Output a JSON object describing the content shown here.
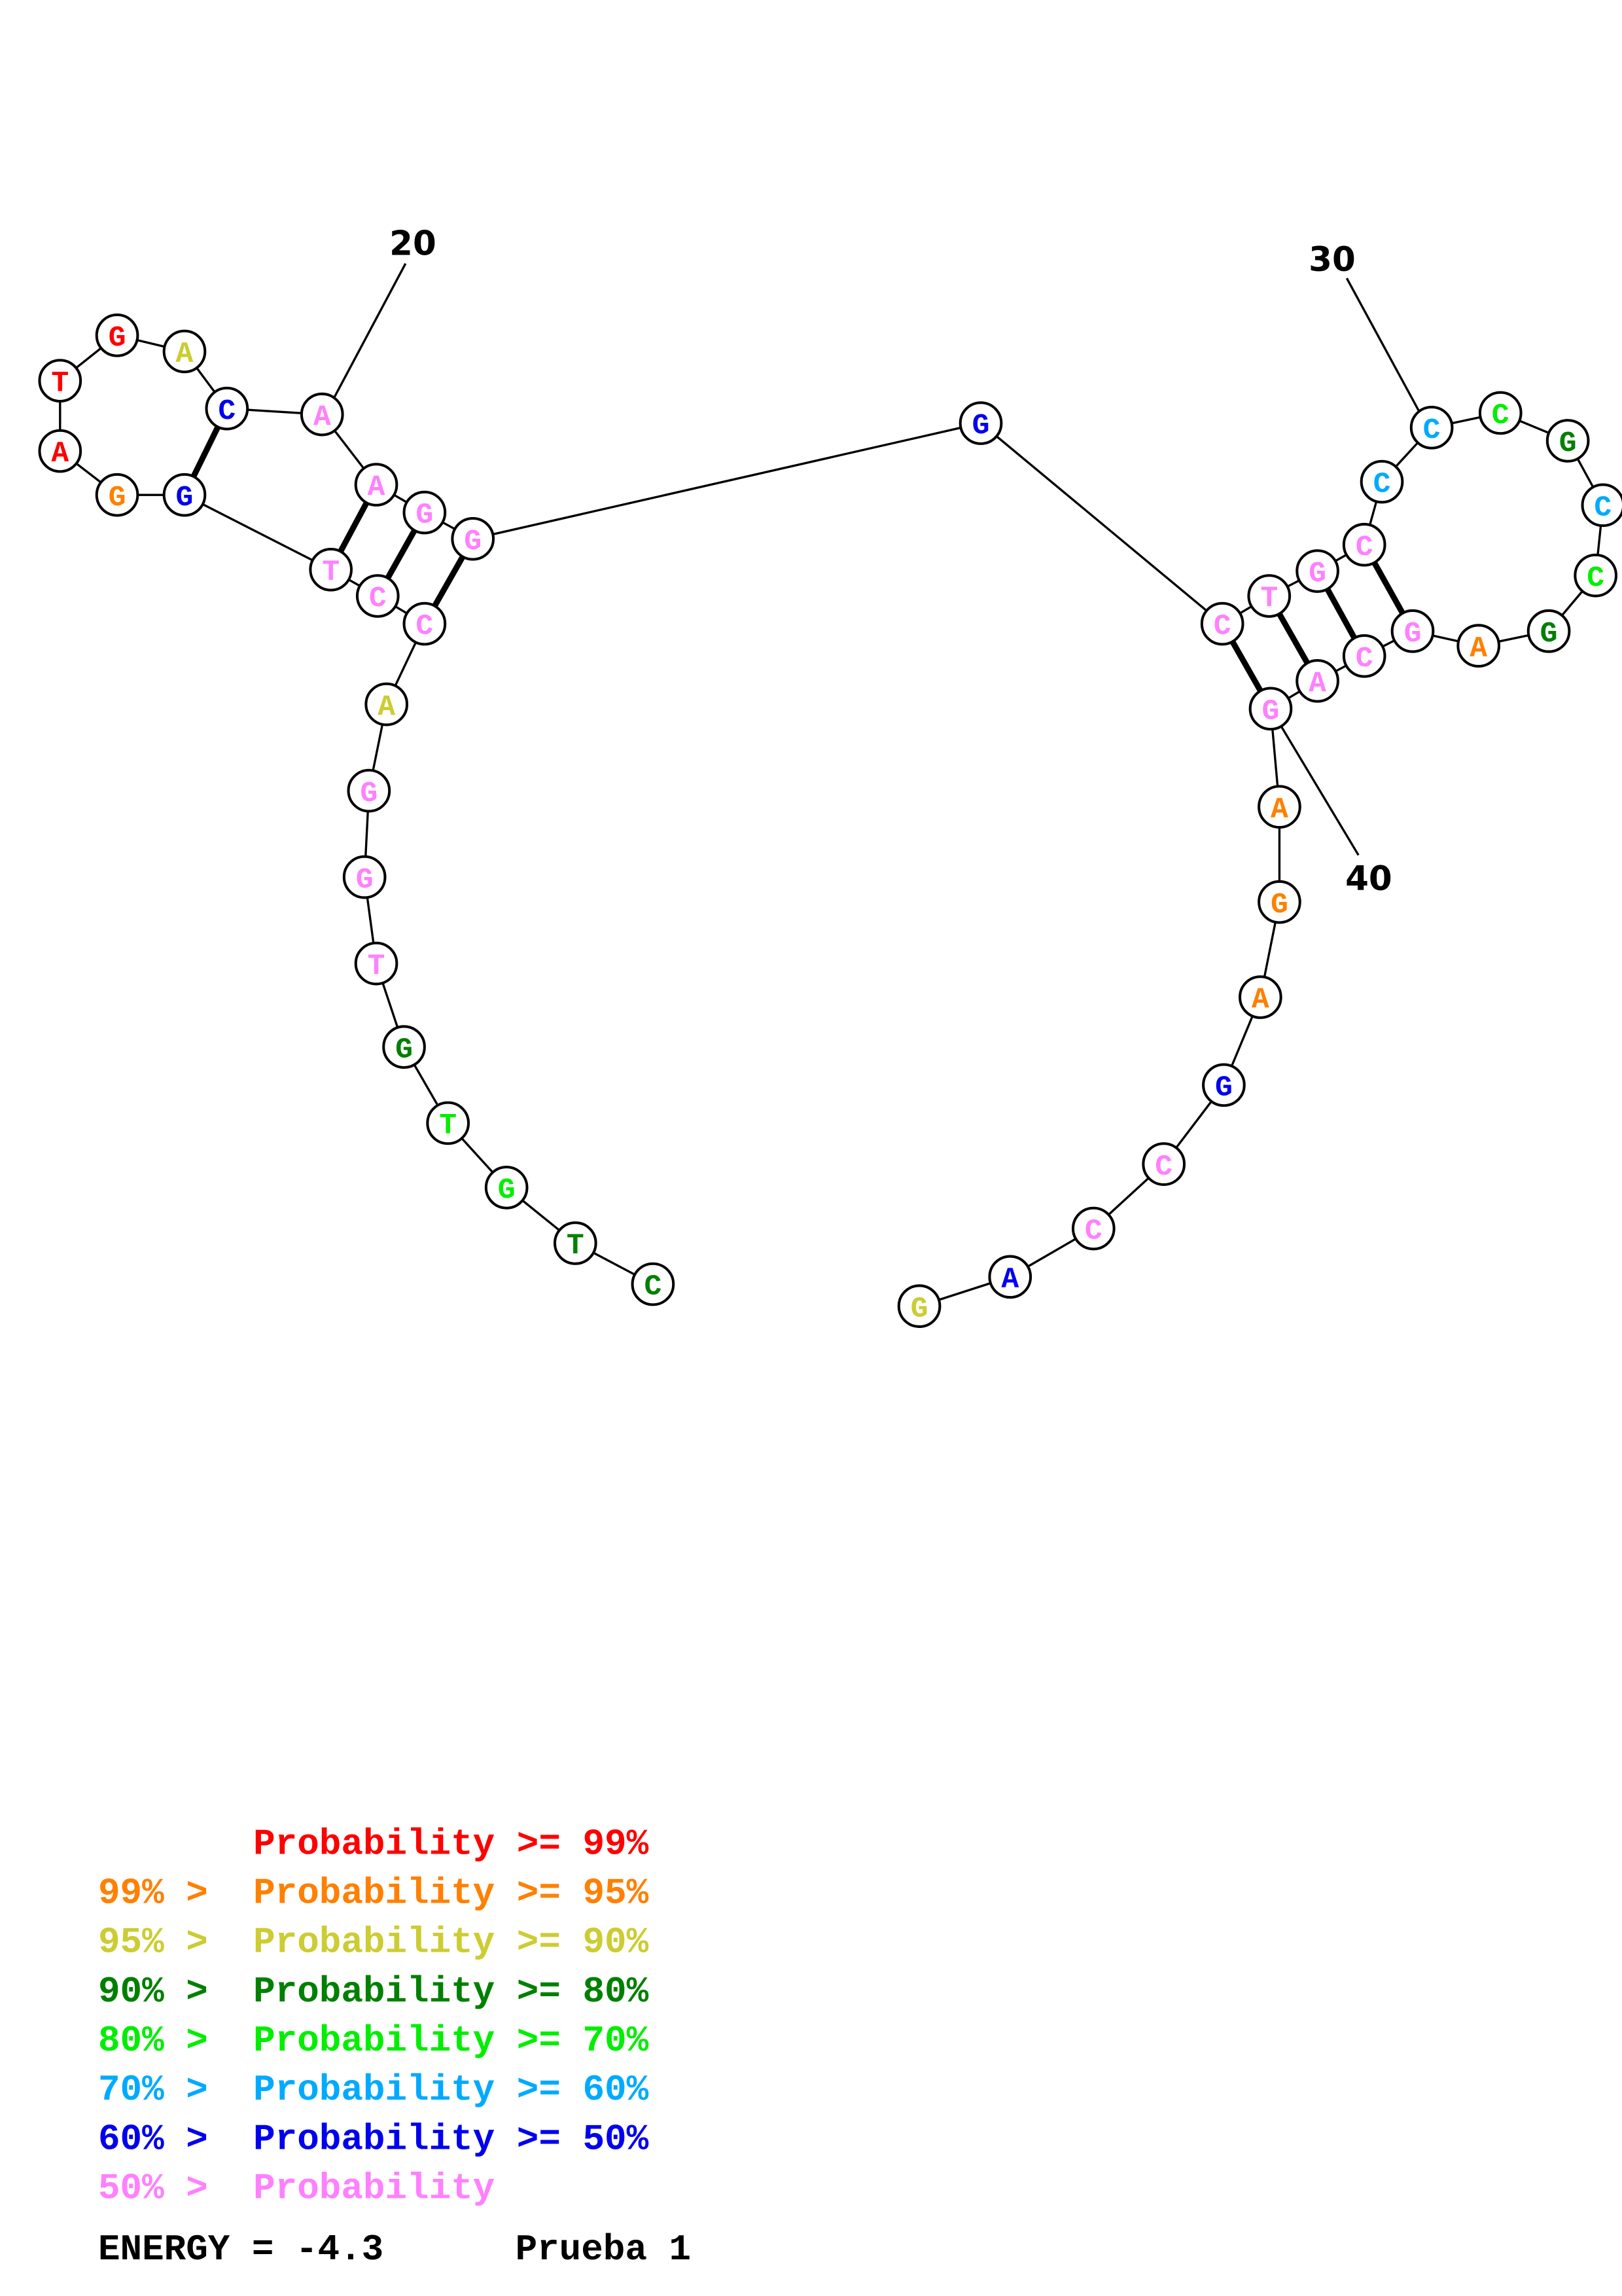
{
  "colors": {
    "p99": "#ff0000",
    "p95": "#ff8000",
    "p90": "#cccc33",
    "p80": "#008000",
    "p70": "#00ee00",
    "p60": "#00aaff",
    "p50": "#0000ee",
    "p0": "#ff80ff"
  },
  "sequence": [
    {
      "base": "C",
      "prob": "p80"
    },
    {
      "base": "T",
      "prob": "p80"
    },
    {
      "base": "G",
      "prob": "p70"
    },
    {
      "base": "T",
      "prob": "p70"
    },
    {
      "base": "G",
      "prob": "p80"
    },
    {
      "base": "T",
      "prob": "p0"
    },
    {
      "base": "G",
      "prob": "p0"
    },
    {
      "base": "G",
      "prob": "p0"
    },
    {
      "base": "A",
      "prob": "p90"
    },
    {
      "base": "C",
      "prob": "p0"
    },
    {
      "base": "C",
      "prob": "p0"
    },
    {
      "base": "T",
      "prob": "p0"
    },
    {
      "base": "G",
      "prob": "p50"
    },
    {
      "base": "G",
      "prob": "p95"
    },
    {
      "base": "A",
      "prob": "p99"
    },
    {
      "base": "T",
      "prob": "p99"
    },
    {
      "base": "G",
      "prob": "p99"
    },
    {
      "base": "A",
      "prob": "p90"
    },
    {
      "base": "C",
      "prob": "p50"
    },
    {
      "base": "A",
      "prob": "p0"
    },
    {
      "base": "A",
      "prob": "p0"
    },
    {
      "base": "G",
      "prob": "p0"
    },
    {
      "base": "G",
      "prob": "p0"
    },
    {
      "base": "G",
      "prob": "p50"
    },
    {
      "base": "C",
      "prob": "p0"
    },
    {
      "base": "T",
      "prob": "p0"
    },
    {
      "base": "G",
      "prob": "p0"
    },
    {
      "base": "C",
      "prob": "p0"
    },
    {
      "base": "C",
      "prob": "p60"
    },
    {
      "base": "C",
      "prob": "p60"
    },
    {
      "base": "C",
      "prob": "p70"
    },
    {
      "base": "G",
      "prob": "p80"
    },
    {
      "base": "C",
      "prob": "p60"
    },
    {
      "base": "C",
      "prob": "p70"
    },
    {
      "base": "G",
      "prob": "p80"
    },
    {
      "base": "A",
      "prob": "p95"
    },
    {
      "base": "G",
      "prob": "p0"
    },
    {
      "base": "C",
      "prob": "p0"
    },
    {
      "base": "A",
      "prob": "p0"
    },
    {
      "base": "G",
      "prob": "p0"
    },
    {
      "base": "A",
      "prob": "p95"
    },
    {
      "base": "G",
      "prob": "p95"
    },
    {
      "base": "A",
      "prob": "p95"
    },
    {
      "base": "G",
      "prob": "p50"
    },
    {
      "base": "C",
      "prob": "p0"
    },
    {
      "base": "C",
      "prob": "p0"
    },
    {
      "base": "A",
      "prob": "p50"
    },
    {
      "base": "G",
      "prob": "p90"
    }
  ],
  "pairs": [
    [
      19,
      13
    ],
    [
      21,
      12
    ],
    [
      22,
      11
    ],
    [
      23,
      10
    ],
    [
      25,
      40
    ],
    [
      26,
      39
    ],
    [
      27,
      38
    ],
    [
      28,
      37
    ]
  ],
  "position_labels": [
    "20",
    "30",
    "40"
  ],
  "legend": [
    {
      "left": "",
      "right": "Probability >= 99%",
      "prob": "p99"
    },
    {
      "left": "99% >",
      "right": "Probability >= 95%",
      "prob": "p95"
    },
    {
      "left": "95% >",
      "right": "Probability >= 90%",
      "prob": "p90"
    },
    {
      "left": "90% >",
      "right": "Probability >= 80%",
      "prob": "p80"
    },
    {
      "left": "80% >",
      "right": "Probability >= 70%",
      "prob": "p70"
    },
    {
      "left": "70% >",
      "right": "Probability >= 60%",
      "prob": "p60"
    },
    {
      "left": "60% >",
      "right": "Probability >= 50%",
      "prob": "p50"
    },
    {
      "left": "50% >",
      "right": "Probability",
      "prob": "p0"
    }
  ],
  "footer": {
    "energy": "ENERGY = -4.3",
    "title": "Prueba 1"
  }
}
